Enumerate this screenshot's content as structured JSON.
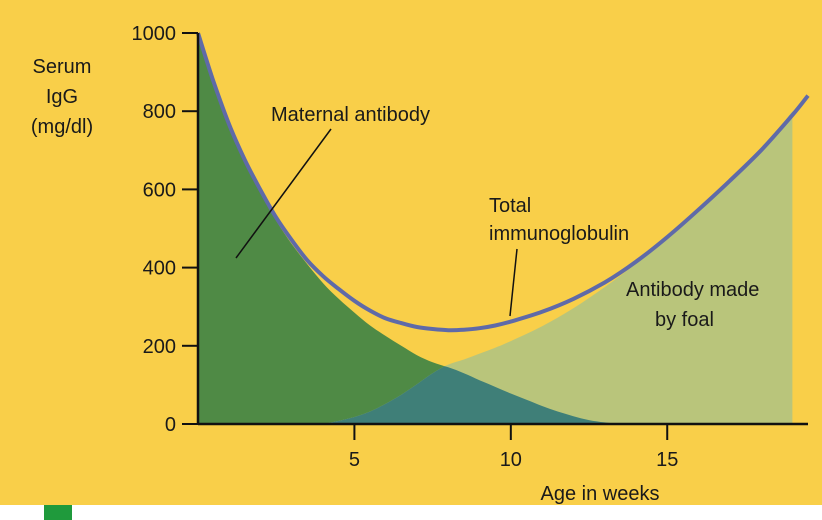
{
  "chart_data": {
    "type": "area",
    "y_axis": {
      "label_lines": [
        "Serum",
        "IgG",
        "(mg/dl)"
      ],
      "ylim": [
        0,
        1000
      ],
      "ticks": [
        0,
        200,
        400,
        600,
        800,
        1000
      ]
    },
    "x_axis": {
      "label": "Age in weeks",
      "xlim": [
        0,
        19.5
      ],
      "ticks": [
        5,
        10,
        15
      ]
    },
    "grid": false,
    "series": [
      {
        "name": "Maternal antibody",
        "color": "#4f8a45",
        "x": [
          0,
          0.5,
          1,
          1.5,
          2,
          2.5,
          3,
          3.5,
          4,
          4.5,
          5,
          5.5,
          6,
          6.5,
          7,
          7.5,
          8,
          8.5,
          9,
          9.5,
          10,
          10.5,
          11,
          11.5,
          12,
          12.5,
          13,
          13.5
        ],
        "y": [
          1000,
          870,
          760,
          670,
          590,
          520,
          460,
          408,
          360,
          320,
          285,
          252,
          225,
          200,
          176,
          158,
          145,
          130,
          112,
          95,
          78,
          62,
          46,
          32,
          20,
          10,
          4,
          0
        ]
      },
      {
        "name": "Antibody made by foal",
        "color": "#b9c57b",
        "x": [
          4,
          4.5,
          5,
          5.5,
          6,
          6.5,
          7,
          7.5,
          8,
          8.5,
          9,
          9.5,
          10,
          11,
          12,
          13,
          14,
          15,
          16,
          17,
          18,
          19
        ],
        "y": [
          0,
          8,
          18,
          32,
          52,
          75,
          102,
          130,
          152,
          165,
          180,
          195,
          212,
          250,
          296,
          350,
          410,
          475,
          545,
          620,
          700,
          800
        ]
      },
      {
        "name": "Total immunoglobulin",
        "color": "#5f6aa8",
        "x": [
          0,
          0.5,
          1,
          1.5,
          2,
          2.5,
          3,
          3.5,
          4,
          4.5,
          5,
          5.5,
          6,
          6.5,
          7,
          7.5,
          8,
          8.5,
          9,
          9.5,
          10,
          11,
          12,
          13,
          14,
          15,
          16,
          17,
          18,
          19,
          19.5
        ],
        "y": [
          1000,
          875,
          765,
          675,
          598,
          528,
          470,
          418,
          378,
          345,
          315,
          290,
          270,
          258,
          248,
          243,
          240,
          241,
          245,
          252,
          262,
          287,
          320,
          362,
          415,
          478,
          548,
          622,
          700,
          790,
          840
        ]
      }
    ],
    "annotations": {
      "maternal": "Maternal antibody",
      "total_line1": "Total",
      "total_line2": "immunoglobulin",
      "foal_line1": "Antibody made",
      "foal_line2": "by foal"
    },
    "overlap_color": "#3f7f78"
  }
}
